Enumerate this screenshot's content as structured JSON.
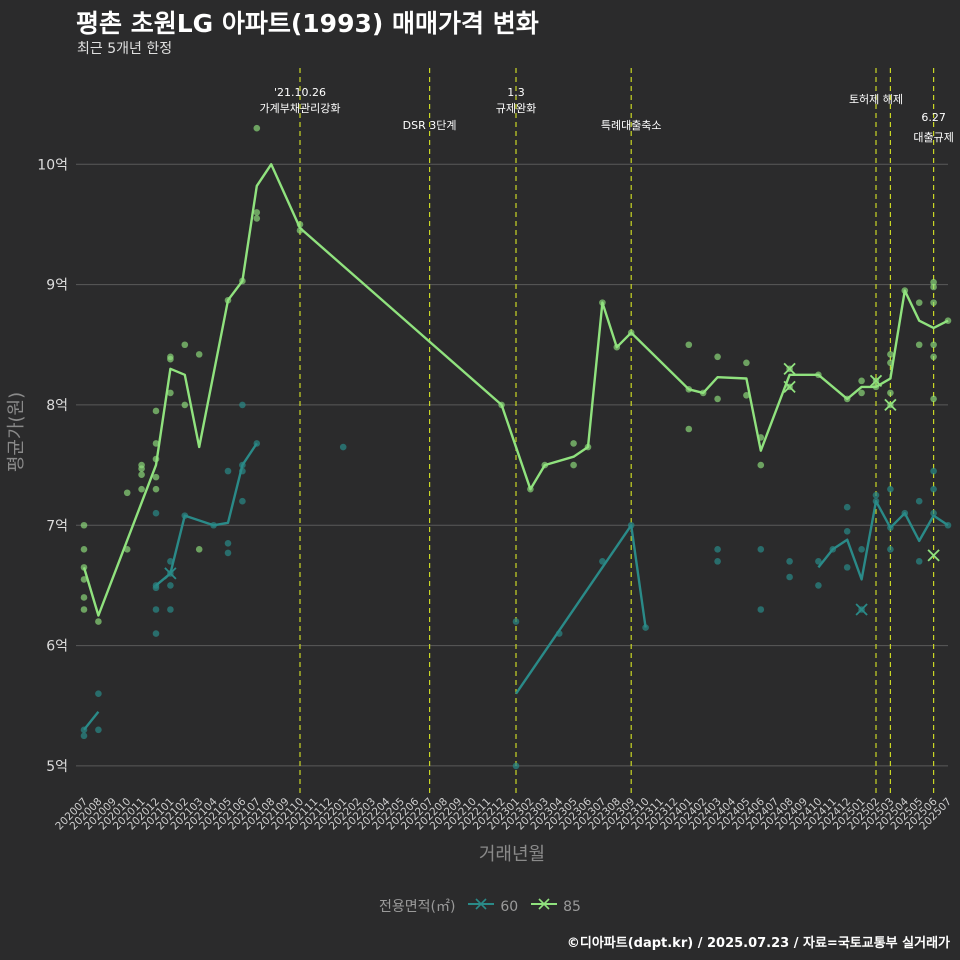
{
  "title": "평촌 초원LG 아파트(1993) 매매가격 변화",
  "subtitle": "최근 5개년 한정",
  "caption": "©디아파트(dapt.kr) / 2025.07.23 / 자료=국토교통부 실거래가",
  "colors": {
    "background": "#2b2b2c",
    "grid": "#5a5a5a",
    "s60": "#2a8a88",
    "s85": "#90e27e",
    "vline": "#c9d625"
  },
  "chart_data": {
    "type": "line",
    "xlabel": "거래년월",
    "ylabel": "평균가(원)",
    "ylim": [
      4.75,
      10.8
    ],
    "y_unit": "억",
    "y_ticks": [
      5,
      6,
      7,
      8,
      9,
      10
    ],
    "y_tick_labels": [
      "5억",
      "6억",
      "7억",
      "8억",
      "9억",
      "10억"
    ],
    "categories": [
      "202007",
      "202008",
      "202009",
      "202010",
      "202011",
      "202012",
      "202101",
      "202102",
      "202103",
      "202104",
      "202105",
      "202106",
      "202107",
      "202108",
      "202109",
      "202110",
      "202111",
      "202112",
      "202201",
      "202202",
      "202203",
      "202204",
      "202205",
      "202206",
      "202207",
      "202208",
      "202209",
      "202210",
      "202211",
      "202212",
      "202301",
      "202302",
      "202303",
      "202304",
      "202305",
      "202306",
      "202307",
      "202308",
      "202309",
      "202310",
      "202311",
      "202312",
      "202401",
      "202402",
      "202403",
      "202404",
      "202405",
      "202406",
      "202407",
      "202408",
      "202409",
      "202410",
      "202411",
      "202412",
      "202501",
      "202502",
      "202503",
      "202504",
      "202505",
      "202506",
      "202507"
    ],
    "legend_title": "전용면적(㎡)",
    "series": [
      {
        "name": "60",
        "line_segments": [
          [
            [
              "202007",
              5.3
            ],
            [
              "202008",
              5.45
            ]
          ],
          [
            [
              "202012",
              6.5
            ],
            [
              "202101",
              6.6
            ],
            [
              "202102",
              7.08
            ],
            [
              "202104",
              7.0
            ],
            [
              "202105",
              7.02
            ],
            [
              "202106",
              7.5
            ],
            [
              "202107",
              7.68
            ]
          ],
          [
            [
              "202301",
              5.6
            ],
            [
              "202309",
              7.0
            ],
            [
              "202310",
              6.15
            ]
          ],
          [
            [
              "202410",
              6.65
            ],
            [
              "202411",
              6.8
            ],
            [
              "202412",
              6.88
            ],
            [
              "202501",
              6.55
            ],
            [
              "202502",
              7.2
            ],
            [
              "202503",
              6.98
            ],
            [
              "202504",
              7.1
            ],
            [
              "202505",
              6.87
            ],
            [
              "202506",
              7.08
            ],
            [
              "202507",
              7.0
            ]
          ]
        ],
        "points": [
          [
            "202007",
            5.3
          ],
          [
            "202007",
            5.25
          ],
          [
            "202008",
            5.6
          ],
          [
            "202008",
            5.3
          ],
          [
            "202012",
            6.5
          ],
          [
            "202012",
            6.48
          ],
          [
            "202012",
            6.3
          ],
          [
            "202012",
            6.1
          ],
          [
            "202012",
            7.1
          ],
          [
            "202101",
            6.7
          ],
          [
            "202101",
            6.6
          ],
          [
            "202101",
            6.5
          ],
          [
            "202101",
            6.3
          ],
          [
            "202102",
            7.08
          ],
          [
            "202104",
            7.0
          ],
          [
            "202105",
            6.85
          ],
          [
            "202105",
            6.77
          ],
          [
            "202105",
            7.45
          ],
          [
            "202106",
            8.0
          ],
          [
            "202106",
            7.5
          ],
          [
            "202106",
            7.45
          ],
          [
            "202106",
            7.2
          ],
          [
            "202107",
            7.68
          ],
          [
            "202201",
            7.65
          ],
          [
            "202301",
            6.2
          ],
          [
            "202301",
            5.0
          ],
          [
            "202304",
            6.1
          ],
          [
            "202307",
            6.7
          ],
          [
            "202309",
            7.0
          ],
          [
            "202310",
            6.15
          ],
          [
            "202403",
            6.8
          ],
          [
            "202403",
            6.7
          ],
          [
            "202406",
            6.8
          ],
          [
            "202406",
            6.3
          ],
          [
            "202408",
            6.7
          ],
          [
            "202408",
            6.57
          ],
          [
            "202410",
            6.7
          ],
          [
            "202410",
            6.5
          ],
          [
            "202411",
            6.8
          ],
          [
            "202412",
            6.95
          ],
          [
            "202412",
            7.15
          ],
          [
            "202412",
            6.65
          ],
          [
            "202501",
            6.8
          ],
          [
            "202501",
            6.3
          ],
          [
            "202502",
            7.25
          ],
          [
            "202502",
            7.2
          ],
          [
            "202503",
            7.3
          ],
          [
            "202503",
            6.8
          ],
          [
            "202503",
            6.98
          ],
          [
            "202504",
            7.1
          ],
          [
            "202505",
            7.2
          ],
          [
            "202505",
            6.7
          ],
          [
            "202506",
            7.45
          ],
          [
            "202506",
            7.3
          ],
          [
            "202506",
            7.1
          ],
          [
            "202507",
            7.0
          ]
        ],
        "x_markers": [
          [
            "202101",
            6.6
          ],
          [
            "202501",
            6.3
          ]
        ]
      },
      {
        "name": "85",
        "line_segments": [
          [
            [
              "202007",
              6.65
            ],
            [
              "202008",
              6.25
            ],
            [
              "202012",
              7.5
            ],
            [
              "202101",
              8.3
            ],
            [
              "202102",
              8.25
            ],
            [
              "202103",
              7.65
            ],
            [
              "202105",
              8.87
            ],
            [
              "202106",
              9.03
            ],
            [
              "202107",
              9.82
            ],
            [
              "202108",
              10.0
            ],
            [
              "202110",
              9.47
            ],
            [
              "202212",
              8.0
            ],
            [
              "202302",
              7.3
            ],
            [
              "202303",
              7.5
            ],
            [
              "202305",
              7.57
            ],
            [
              "202306",
              7.65
            ],
            [
              "202307",
              8.85
            ],
            [
              "202308",
              8.48
            ],
            [
              "202309",
              8.6
            ],
            [
              "202401",
              8.13
            ],
            [
              "202402",
              8.1
            ],
            [
              "202403",
              8.23
            ],
            [
              "202405",
              8.22
            ],
            [
              "202406",
              7.62
            ],
            [
              "202408",
              8.25
            ],
            [
              "202410",
              8.25
            ],
            [
              "202412",
              8.05
            ],
            [
              "202501",
              8.15
            ],
            [
              "202502",
              8.15
            ],
            [
              "202503",
              8.22
            ],
            [
              "202504",
              8.95
            ],
            [
              "202505",
              8.7
            ],
            [
              "202506",
              8.64
            ],
            [
              "202507",
              8.7
            ]
          ]
        ],
        "points": [
          [
            "202007",
            7.0
          ],
          [
            "202007",
            6.8
          ],
          [
            "202007",
            6.65
          ],
          [
            "202007",
            6.55
          ],
          [
            "202007",
            6.4
          ],
          [
            "202007",
            6.3
          ],
          [
            "202008",
            6.2
          ],
          [
            "202010",
            7.27
          ],
          [
            "202010",
            6.8
          ],
          [
            "202011",
            7.5
          ],
          [
            "202011",
            7.47
          ],
          [
            "202011",
            7.42
          ],
          [
            "202011",
            7.3
          ],
          [
            "202012",
            7.95
          ],
          [
            "202012",
            7.68
          ],
          [
            "202012",
            7.55
          ],
          [
            "202012",
            7.4
          ],
          [
            "202012",
            7.3
          ],
          [
            "202101",
            8.4
          ],
          [
            "202101",
            8.38
          ],
          [
            "202101",
            8.1
          ],
          [
            "202102",
            8.5
          ],
          [
            "202102",
            8.0
          ],
          [
            "202103",
            8.42
          ],
          [
            "202103",
            6.8
          ],
          [
            "202105",
            8.87
          ],
          [
            "202106",
            9.03
          ],
          [
            "202107",
            10.3
          ],
          [
            "202107",
            9.6
          ],
          [
            "202107",
            9.55
          ],
          [
            "202110",
            9.5
          ],
          [
            "202110",
            9.45
          ],
          [
            "202212",
            8.0
          ],
          [
            "202302",
            7.3
          ],
          [
            "202303",
            7.5
          ],
          [
            "202305",
            7.68
          ],
          [
            "202305",
            7.5
          ],
          [
            "202306",
            7.65
          ],
          [
            "202307",
            8.85
          ],
          [
            "202308",
            8.48
          ],
          [
            "202309",
            8.6
          ],
          [
            "202401",
            8.5
          ],
          [
            "202401",
            8.13
          ],
          [
            "202401",
            7.8
          ],
          [
            "202402",
            8.1
          ],
          [
            "202403",
            8.4
          ],
          [
            "202403",
            8.05
          ],
          [
            "202405",
            8.35
          ],
          [
            "202405",
            8.08
          ],
          [
            "202406",
            7.73
          ],
          [
            "202406",
            7.5
          ],
          [
            "202408",
            8.3
          ],
          [
            "202408",
            8.15
          ],
          [
            "202410",
            8.25
          ],
          [
            "202412",
            8.05
          ],
          [
            "202501",
            8.2
          ],
          [
            "202501",
            8.1
          ],
          [
            "202502",
            8.2
          ],
          [
            "202502",
            8.15
          ],
          [
            "202503",
            8.42
          ],
          [
            "202503",
            8.35
          ],
          [
            "202503",
            8.1
          ],
          [
            "202503",
            8.0
          ],
          [
            "202504",
            8.95
          ],
          [
            "202505",
            8.85
          ],
          [
            "202505",
            8.5
          ],
          [
            "202506",
            9.02
          ],
          [
            "202506",
            8.98
          ],
          [
            "202506",
            8.85
          ],
          [
            "202506",
            8.5
          ],
          [
            "202506",
            8.4
          ],
          [
            "202506",
            8.05
          ],
          [
            "202507",
            8.7
          ]
        ],
        "x_markers": [
          [
            "202408",
            8.3
          ],
          [
            "202408",
            8.15
          ],
          [
            "202502",
            8.2
          ],
          [
            "202503",
            8.0
          ],
          [
            "202506",
            6.75
          ]
        ]
      }
    ],
    "event_lines": [
      {
        "x": "202110",
        "label1": "'21.10.26",
        "label2": "가계부채관리강화",
        "level": 0
      },
      {
        "x": "202207",
        "label1": "",
        "label2": "DSR 3단계",
        "level": 1
      },
      {
        "x": "202301",
        "label1": "1.3",
        "label2": "규제완화",
        "level": 0
      },
      {
        "x": "202309",
        "label1": "",
        "label2": "특례대출축소",
        "level": 1
      },
      {
        "x": "202502",
        "label1": "",
        "label2": "토허제 해제",
        "level": 2
      },
      {
        "x": "202503",
        "label1": "",
        "label2": "",
        "level": 2
      },
      {
        "x": "202506",
        "label1": "6.27",
        "label2": "대출규제",
        "level": 3
      }
    ]
  }
}
